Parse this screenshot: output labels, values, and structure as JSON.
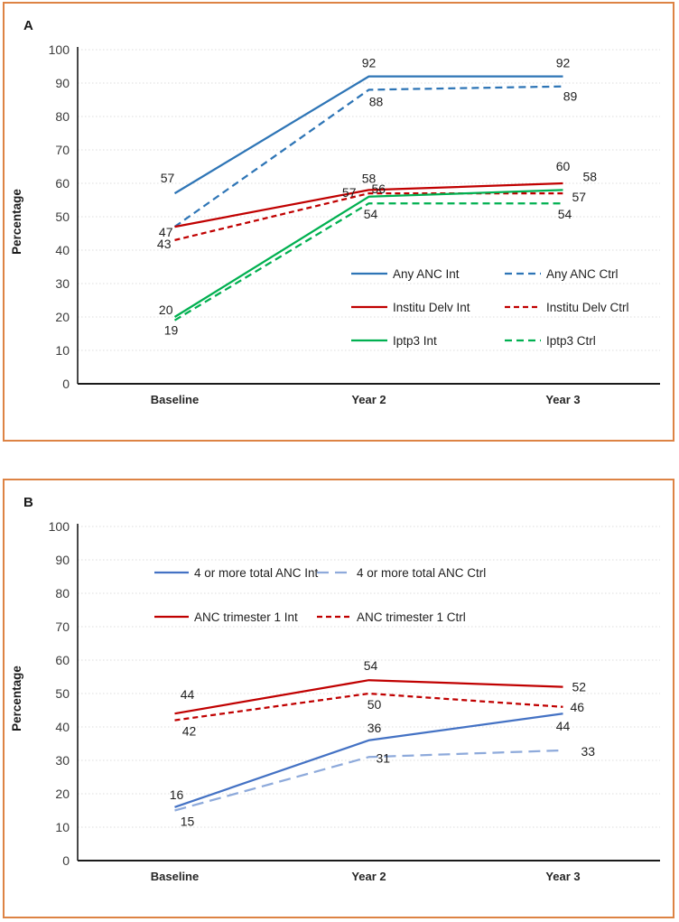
{
  "chart_data": [
    {
      "panel_label": "A",
      "type": "line",
      "title": "",
      "xlabel": "",
      "ylabel": "Percentage",
      "categories": [
        "Baseline",
        "Year 2",
        "Year 3"
      ],
      "ylim": [
        0,
        100
      ],
      "ytick_step": 10,
      "grid": true,
      "legend_position": "inside-center-right",
      "series": [
        {
          "name": "Any ANC Int",
          "color": "#2E75B6",
          "style": "solid",
          "values": [
            57,
            92,
            92
          ],
          "labels": [
            {
              "t": "57",
              "a": "middle",
              "dx": -8,
              "dy": -12
            },
            {
              "t": "92",
              "a": "middle",
              "dx": 0,
              "dy": -10
            },
            {
              "t": "92",
              "a": "middle",
              "dx": 0,
              "dy": -10
            }
          ]
        },
        {
          "name": "Any ANC Ctrl",
          "color": "#2E75B6",
          "style": "dash",
          "values": [
            47,
            88,
            89
          ],
          "labels": [
            null,
            {
              "t": "88",
              "a": "middle",
              "dx": 8,
              "dy": 18
            },
            {
              "t": "89",
              "a": "middle",
              "dx": 8,
              "dy": 16
            }
          ]
        },
        {
          "name": "Institu Delv Int",
          "color": "#C00000",
          "style": "solid",
          "values": [
            47,
            58,
            60
          ],
          "labels": [
            {
              "t": "47",
              "a": "end",
              "dx": -2,
              "dy": 11
            },
            {
              "t": "58",
              "a": "middle",
              "dx": 0,
              "dy": -8
            },
            {
              "t": "60",
              "a": "middle",
              "dx": 0,
              "dy": -14
            }
          ]
        },
        {
          "name": "Institu Delv Ctrl",
          "color": "#C00000",
          "style": "shortdash",
          "values": [
            43,
            57,
            57
          ],
          "labels": [
            {
              "t": "43",
              "a": "end",
              "dx": -4,
              "dy": 9
            },
            {
              "t": "57",
              "a": "end",
              "dx": -14,
              "dy": 4
            },
            {
              "t": "57",
              "a": "start",
              "dx": 10,
              "dy": 9
            }
          ]
        },
        {
          "name": "Iptp3 Int",
          "color": "#00B050",
          "style": "solid",
          "values": [
            20,
            56,
            58
          ],
          "labels": [
            {
              "t": "20",
              "a": "end",
              "dx": -2,
              "dy": -3
            },
            {
              "t": "56",
              "a": "start",
              "dx": 3,
              "dy": -4
            },
            {
              "t": "58",
              "a": "start",
              "dx": 22,
              "dy": -10
            }
          ]
        },
        {
          "name": "Iptp3 Ctrl",
          "color": "#00B050",
          "style": "dash",
          "values": [
            19,
            54,
            54
          ],
          "labels": [
            {
              "t": "19",
              "a": "middle",
              "dx": -4,
              "dy": 16
            },
            {
              "t": "54",
              "a": "middle",
              "dx": 2,
              "dy": 17
            },
            {
              "t": "54",
              "a": "middle",
              "dx": 2,
              "dy": 17
            }
          ]
        }
      ],
      "legend": {
        "rows": [
          [
            0,
            1
          ],
          [
            2,
            3
          ],
          [
            4,
            5
          ]
        ],
        "col_x": [
          378,
          548
        ],
        "row_y": [
          273,
          310,
          347
        ],
        "line_len": 40,
        "text_gap": 6
      }
    },
    {
      "panel_label": "B",
      "type": "line",
      "title": "",
      "xlabel": "",
      "ylabel": "Percentage",
      "categories": [
        "Baseline",
        "Year 2",
        "Year 3"
      ],
      "ylim": [
        0,
        100
      ],
      "ytick_step": 10,
      "grid": true,
      "legend_position": "inside-top-center",
      "series": [
        {
          "name": "4 or more total ANC Int",
          "color": "#4472C4",
          "style": "solid",
          "values": [
            16,
            36,
            44
          ],
          "labels": [
            {
              "t": "16",
              "a": "middle",
              "dx": 2,
              "dy": -9
            },
            {
              "t": "36",
              "a": "middle",
              "dx": 6,
              "dy": -9
            },
            {
              "t": "44",
              "a": "middle",
              "dx": 0,
              "dy": 19
            }
          ]
        },
        {
          "name": "4 or more total ANC Ctrl",
          "color": "#8EAADB",
          "style": "longdash",
          "values": [
            15,
            31,
            33
          ],
          "labels": [
            {
              "t": "15",
              "a": "middle",
              "dx": 14,
              "dy": 17
            },
            {
              "t": "31",
              "a": "start",
              "dx": 8,
              "dy": 6
            },
            {
              "t": "33",
              "a": "start",
              "dx": 20,
              "dy": 6
            }
          ]
        },
        {
          "name": "ANC trimester 1 Int",
          "color": "#C00000",
          "style": "solid",
          "values": [
            44,
            54,
            52
          ],
          "labels": [
            {
              "t": "44",
              "a": "middle",
              "dx": 14,
              "dy": -16
            },
            {
              "t": "54",
              "a": "middle",
              "dx": 2,
              "dy": -11
            },
            {
              "t": "52",
              "a": "start",
              "dx": 10,
              "dy": 5
            }
          ]
        },
        {
          "name": "ANC trimester 1 Ctrl",
          "color": "#C00000",
          "style": "shortdash",
          "values": [
            42,
            50,
            46
          ],
          "labels": [
            {
              "t": "42",
              "a": "middle",
              "dx": 16,
              "dy": 17
            },
            {
              "t": "50",
              "a": "middle",
              "dx": 6,
              "dy": 17
            },
            {
              "t": "46",
              "a": "start",
              "dx": 8,
              "dy": 5
            }
          ]
        }
      ],
      "legend": {
        "rows": [
          [
            0,
            1
          ],
          [
            2,
            3
          ]
        ],
        "col_x": [
          160,
          340
        ],
        "row_y": [
          76,
          125
        ],
        "line_len": 38,
        "text_gap": 6
      }
    }
  ]
}
